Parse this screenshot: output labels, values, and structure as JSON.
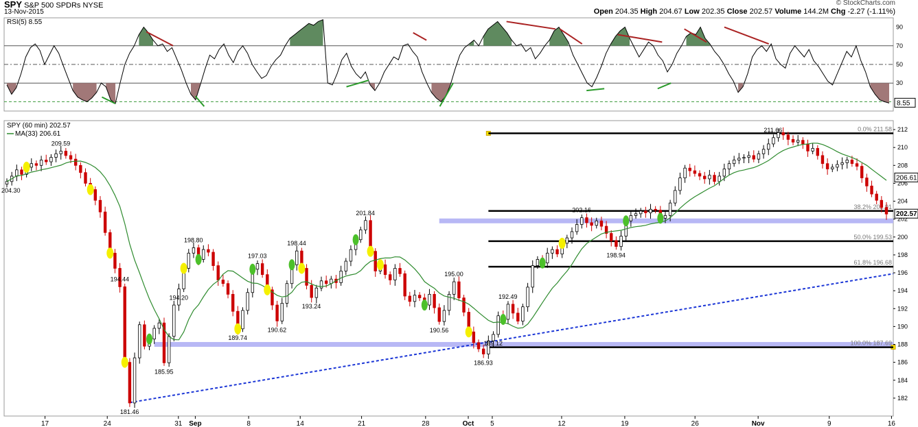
{
  "header": {
    "symbol": "SPY",
    "name": "S&P 500 SPDRs",
    "exchange": "NYSE",
    "date": "13-Nov-2015",
    "copyright": "© StockCharts.com",
    "ohlc": [
      {
        "label": "Open",
        "value": "204.35"
      },
      {
        "label": "High",
        "value": "204.67"
      },
      {
        "label": "Low",
        "value": "202.35"
      },
      {
        "label": "Close",
        "value": "202.57"
      },
      {
        "label": "Volume",
        "value": "144.2M"
      },
      {
        "label": "Chg",
        "value": "-2.27 (-1.11%)"
      }
    ]
  },
  "chart_data": [
    {
      "type": "line",
      "panel": "RSI",
      "label": "RSI(5) 8.55",
      "current_value_label": "8.55",
      "ylim": [
        0,
        100
      ],
      "ticks": [
        30,
        50,
        70,
        90
      ],
      "lines": [
        70,
        50,
        30,
        10
      ],
      "overbought_fill": "#5f8a5f",
      "oversold_fill": "#a17878",
      "values": [
        28,
        18,
        25,
        40,
        58,
        68,
        72,
        65,
        50,
        60,
        70,
        62,
        48,
        35,
        22,
        15,
        12,
        10,
        14,
        20,
        30,
        26,
        12,
        8,
        30,
        50,
        62,
        70,
        82,
        90,
        84,
        76,
        70,
        72,
        64,
        68,
        56,
        44,
        30,
        18,
        12,
        28,
        45,
        60,
        56,
        66,
        72,
        60,
        52,
        64,
        70,
        62,
        50,
        42,
        35,
        38,
        48,
        55,
        60,
        70,
        78,
        82,
        86,
        90,
        94,
        92,
        96,
        98,
        30,
        28,
        40,
        55,
        62,
        48,
        40,
        35,
        42,
        28,
        22,
        30,
        42,
        50,
        58,
        55,
        70,
        72,
        64,
        58,
        42,
        30,
        20,
        14,
        10,
        16,
        28,
        45,
        60,
        68,
        72,
        76,
        70,
        80,
        88,
        92,
        96,
        90,
        84,
        76,
        70,
        72,
        64,
        68,
        56,
        62,
        70,
        76,
        86,
        90,
        82,
        74,
        60,
        50,
        40,
        30,
        26,
        36,
        48,
        62,
        72,
        80,
        86,
        90,
        78,
        68,
        58,
        66,
        74,
        70,
        60,
        54,
        42,
        50,
        62,
        70,
        80,
        84,
        82,
        90,
        78,
        72,
        64,
        58,
        50,
        40,
        32,
        20,
        26,
        40,
        58,
        66,
        70,
        64,
        72,
        56,
        50,
        46,
        62,
        70,
        64,
        58,
        66,
        54,
        48,
        40,
        32,
        28,
        40,
        52,
        64,
        58,
        70,
        54,
        42,
        26,
        18,
        12,
        10,
        8.55
      ]
    },
    {
      "type": "line",
      "panel": "Price",
      "label": "SPY (60 min) 202.57",
      "ma_label": "MA(33) 206.61",
      "current_value_label": "202.57",
      "ma_value_label": "206.61",
      "ylim": [
        180,
        213
      ],
      "ticks": [
        182,
        184,
        186,
        188,
        190,
        192,
        194,
        196,
        198,
        200,
        202,
        204,
        206,
        208,
        210,
        212
      ],
      "x_tick_labels": [
        "17",
        "24",
        "31",
        "Sep",
        "8",
        "14",
        "21",
        "28",
        "Oct",
        "5",
        "12",
        "19",
        "26",
        "Nov",
        "9",
        "16"
      ],
      "close": [
        206.2,
        206.8,
        207.5,
        207.0,
        207.8,
        208.2,
        208.0,
        208.6,
        208.4,
        208.9,
        209.3,
        209.59,
        209.1,
        208.7,
        208.0,
        207.2,
        206.0,
        205.3,
        204.1,
        202.8,
        200.5,
        198.2,
        196.5,
        194.44,
        186.0,
        181.46,
        186.5,
        190.2,
        187.8,
        188.6,
        189.8,
        190.4,
        185.95,
        188.9,
        192.4,
        194.2,
        196.5,
        198.2,
        198.8,
        197.5,
        198.6,
        198.3,
        196.8,
        195.2,
        194.8,
        193.6,
        191.7,
        189.74,
        191.8,
        193.8,
        196.4,
        197.03,
        195.8,
        194.1,
        192.4,
        190.62,
        192.6,
        194.8,
        196.9,
        198.44,
        196.5,
        194.6,
        193.24,
        194.3,
        195.1,
        194.8,
        195.3,
        194.9,
        196.2,
        197.3,
        198.6,
        199.7,
        200.8,
        201.84,
        198.4,
        196.2,
        196.9,
        195.8,
        195.2,
        196.5,
        195.9,
        193.4,
        192.8,
        193.5,
        193.2,
        192.4,
        193.6,
        192.1,
        190.56,
        191.8,
        193.6,
        195.0,
        193.2,
        191.6,
        189.4,
        188.2,
        187.5,
        186.93,
        188.4,
        189.12,
        191.2,
        190.8,
        192.49,
        191.5,
        190.6,
        192.2,
        194.4,
        196.8,
        197.5,
        197.1,
        198.2,
        198.6,
        198.1,
        199.3,
        199.9,
        200.6,
        201.4,
        202.16,
        201.6,
        201.3,
        201.8,
        201.2,
        200.4,
        199.6,
        198.94,
        200.1,
        201.8,
        202.4,
        202.6,
        202.9,
        202.7,
        203.1,
        203.0,
        202.1,
        202.4,
        203.8,
        205.2,
        206.6,
        207.7,
        207.4,
        207.1,
        206.8,
        206.5,
        206.9,
        206.2,
        206.8,
        207.6,
        208.2,
        208.6,
        208.8,
        208.9,
        209.1,
        208.7,
        209.3,
        209.8,
        210.4,
        211.1,
        211.66,
        211.4,
        210.9,
        210.6,
        210.8,
        210.4,
        209.6,
        209.9,
        209.1,
        208.2,
        207.6,
        207.8,
        208.1,
        208.3,
        208.6,
        208.2,
        207.9,
        206.6,
        205.7,
        204.8,
        204.1,
        203.3,
        202.57
      ]
    }
  ],
  "annotations": {
    "price_labels": [
      {
        "text": "209.59"
      },
      {
        "text": "204.30"
      },
      {
        "text": "194.44"
      },
      {
        "text": "181.46"
      },
      {
        "text": "185.95"
      },
      {
        "text": "198.80"
      },
      {
        "text": "194.20"
      },
      {
        "text": "189.74"
      },
      {
        "text": "197.03"
      },
      {
        "text": "190.62"
      },
      {
        "text": "198.44"
      },
      {
        "text": "193.24"
      },
      {
        "text": "201.84"
      },
      {
        "text": "195.00"
      },
      {
        "text": "190.56"
      },
      {
        "text": "186.93"
      },
      {
        "text": "192.49"
      },
      {
        "text": "189.12"
      },
      {
        "text": "202.16"
      },
      {
        "text": "198.94"
      },
      {
        "text": "211.66"
      }
    ],
    "fib_levels": [
      {
        "label": "0.0% 211.58",
        "value": 211.58
      },
      {
        "label": "38.2% 202.91",
        "value": 202.91
      },
      {
        "label": "50.0% 199.53",
        "value": 199.53
      },
      {
        "label": "61.8% 196.68",
        "value": 196.68
      },
      {
        "label": "100.0% 187.69",
        "value": 187.69
      }
    ],
    "support_band_values": [
      201.8,
      188.0
    ],
    "trendline": {
      "from": 181.5,
      "to": 195.9
    },
    "colors": {
      "fib_line": "#000000",
      "band": "#b8b8f5",
      "trendline": "#1a35d6",
      "ma": "#2e8b2e",
      "up": "#000000",
      "down": "#cc0000",
      "marker_yellow": "#f5f000",
      "marker_green": "#4cc02a"
    }
  }
}
